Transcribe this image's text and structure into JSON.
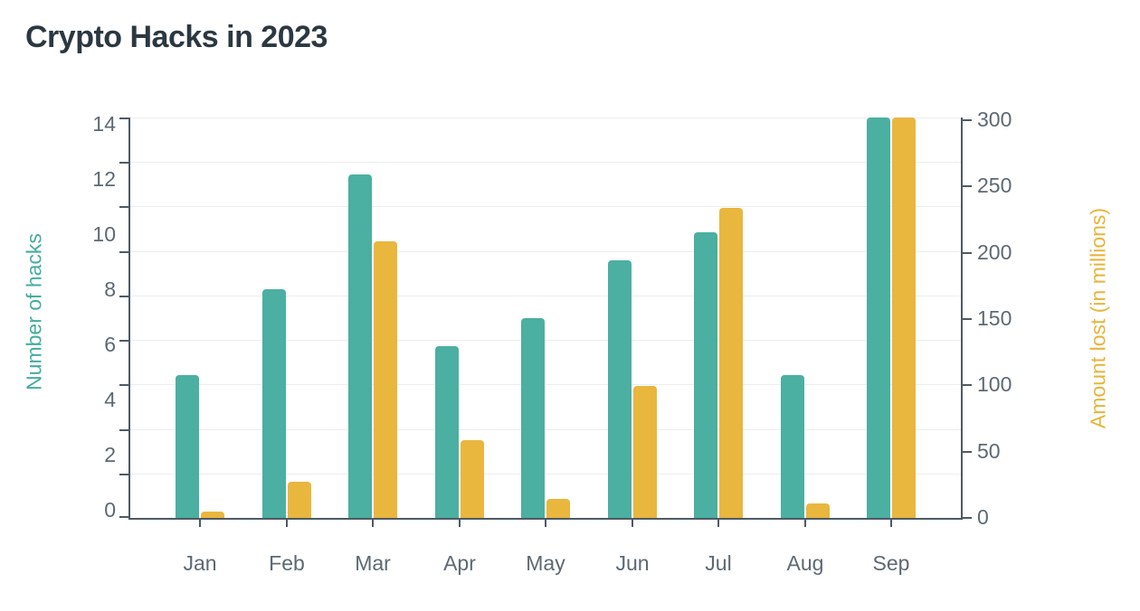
{
  "chart_data": {
    "type": "bar",
    "title": "Crypto Hacks in 2023",
    "categories": [
      "Jan",
      "Feb",
      "Mar",
      "Apr",
      "May",
      "Jun",
      "Jul",
      "Aug",
      "Sep"
    ],
    "series": [
      {
        "name": "Number of hacks",
        "axis": "left",
        "color": "#4bafa2",
        "values": [
          5,
          8,
          12,
          6,
          7,
          9,
          10,
          5,
          14
        ]
      },
      {
        "name": "Amount lost (in millions)",
        "axis": "right",
        "color": "#e9b63e",
        "values": [
          5,
          27,
          207,
          58,
          14,
          99,
          232,
          11,
          300
        ]
      }
    ],
    "left_axis": {
      "label": "Number of hacks",
      "color": "#46ada0",
      "min": 0,
      "max": 14,
      "tick_labels": [
        "0",
        "2",
        "4",
        "6",
        "8",
        "10",
        "12",
        "14"
      ]
    },
    "right_axis": {
      "label": "Amount lost (in millions)",
      "color": "#e8b43c",
      "min": 0,
      "max": 300,
      "tick_labels": [
        "0",
        "50",
        "100",
        "150",
        "200",
        "250",
        "300"
      ]
    },
    "grid": true,
    "legend": "none",
    "background": "#ffffff"
  },
  "style": {
    "title_color": "#2b3842",
    "axis_line_color": "#4e5a64",
    "tick_label_color": "#5d6974",
    "grid_color": "#ededed"
  }
}
